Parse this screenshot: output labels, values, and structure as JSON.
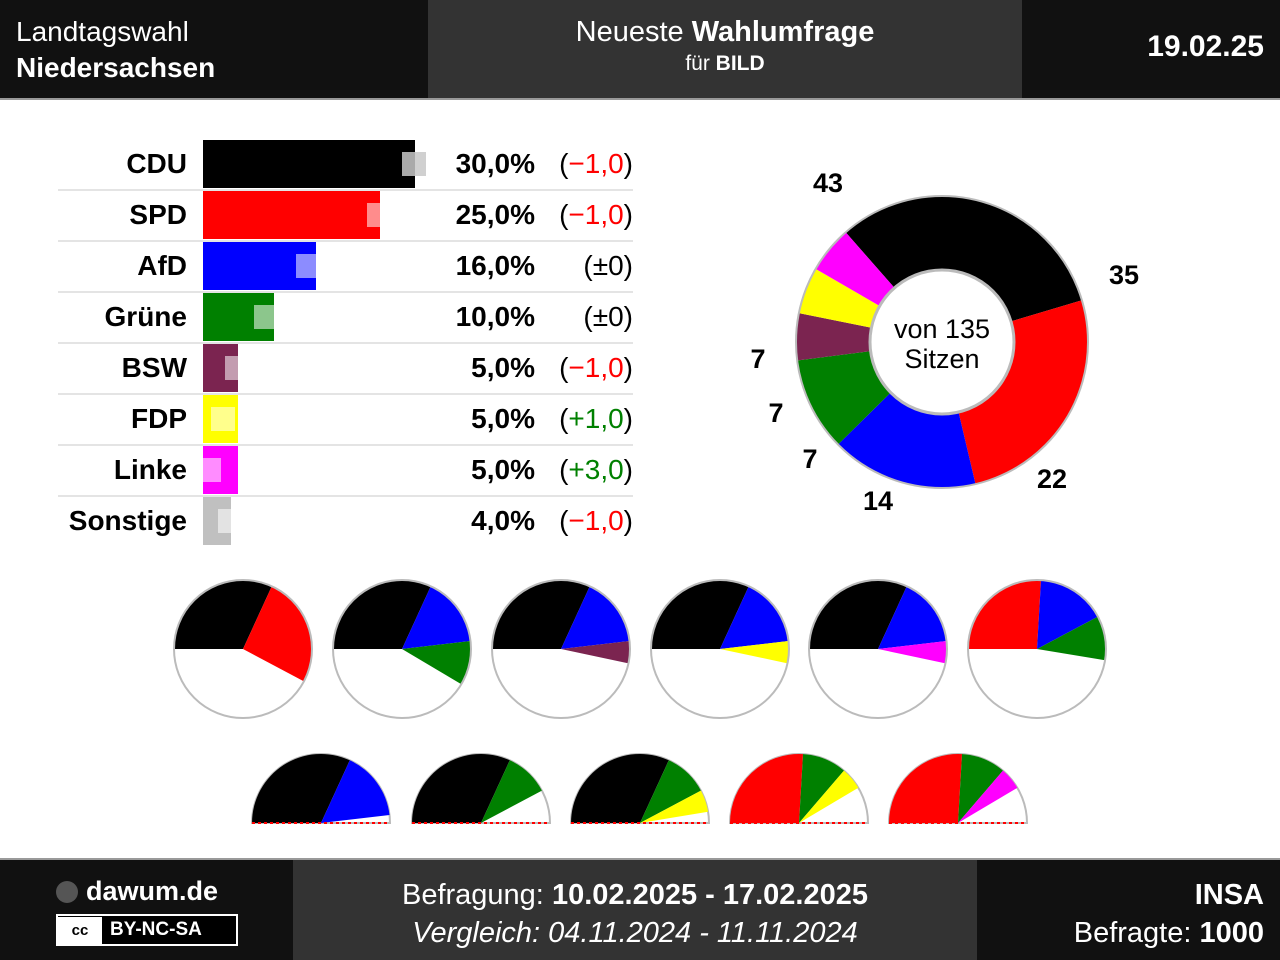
{
  "header": {
    "title_line1": "Landtagswahl",
    "title_line2": "Niedersachsen",
    "mid_prefix": "Neueste ",
    "mid_bold": "Wahlumfrage",
    "for_prefix": "für ",
    "for_client": "BILD",
    "date": "19.02.25"
  },
  "chart_data": [
    {
      "type": "bar",
      "categories": [
        "CDU",
        "SPD",
        "AfD",
        "Grüne",
        "BSW",
        "FDP",
        "Linke",
        "Sonstige"
      ],
      "values": [
        30.0,
        25.0,
        16.0,
        10.0,
        5.0,
        5.0,
        5.0,
        4.0
      ],
      "previous": [
        31.0,
        26.0,
        16.0,
        10.0,
        6.0,
        4.0,
        2.0,
        5.0
      ],
      "value_labels": [
        "30,0%",
        "25,0%",
        "16,0%",
        "10,0%",
        "5,0%",
        "5,0%",
        "5,0%",
        "4,0%"
      ],
      "change_labels": [
        "−1,0",
        "−1,0",
        "±0",
        "±0",
        "−1,0",
        "+1,0",
        "+3,0",
        "−1,0"
      ],
      "change_colors": [
        "#ff0000",
        "#ff0000",
        "#000000",
        "#000000",
        "#ff0000",
        "#008000",
        "#008000",
        "#ff0000"
      ],
      "colors": [
        "#000000",
        "#ff0000",
        "#0000ff",
        "#008000",
        "#7b2450",
        "#ffff00",
        "#ff00ff",
        "#c0c0c0"
      ]
    },
    {
      "type": "pie",
      "categories": [
        "CDU",
        "SPD",
        "AfD",
        "Grüne",
        "BSW",
        "FDP",
        "Linke"
      ],
      "values": [
        43,
        35,
        22,
        14,
        7,
        7,
        7
      ],
      "colors": [
        "#000000",
        "#ff0000",
        "#0000ff",
        "#008000",
        "#7b2450",
        "#ffff00",
        "#ff00ff"
      ],
      "center_line1": "von 135",
      "center_line2": "Sitzen"
    }
  ],
  "coalitions": [
    {
      "parties": [
        "CDU",
        "SPD"
      ],
      "seats": [
        43,
        35
      ],
      "colors": [
        "#000000",
        "#ff0000"
      ]
    },
    {
      "parties": [
        "CDU",
        "AfD",
        "Grüne"
      ],
      "seats": [
        43,
        22,
        14
      ],
      "colors": [
        "#000000",
        "#0000ff",
        "#008000"
      ]
    },
    {
      "parties": [
        "CDU",
        "AfD",
        "BSW"
      ],
      "seats": [
        43,
        22,
        7
      ],
      "colors": [
        "#000000",
        "#0000ff",
        "#7b2450"
      ]
    },
    {
      "parties": [
        "CDU",
        "AfD",
        "FDP"
      ],
      "seats": [
        43,
        22,
        7
      ],
      "colors": [
        "#000000",
        "#0000ff",
        "#ffff00"
      ]
    },
    {
      "parties": [
        "CDU",
        "AfD",
        "Linke"
      ],
      "seats": [
        43,
        22,
        7
      ],
      "colors": [
        "#000000",
        "#0000ff",
        "#ff00ff"
      ]
    },
    {
      "parties": [
        "SPD",
        "AfD",
        "Grüne"
      ],
      "seats": [
        35,
        22,
        14
      ],
      "colors": [
        "#ff0000",
        "#0000ff",
        "#008000"
      ]
    },
    {
      "parties": [
        "CDU",
        "AfD"
      ],
      "seats": [
        43,
        22
      ],
      "colors": [
        "#000000",
        "#0000ff"
      ]
    },
    {
      "parties": [
        "CDU",
        "Grüne"
      ],
      "seats": [
        43,
        14
      ],
      "colors": [
        "#000000",
        "#008000"
      ]
    },
    {
      "parties": [
        "CDU",
        "Grüne",
        "FDP"
      ],
      "seats": [
        43,
        14,
        7
      ],
      "colors": [
        "#000000",
        "#008000",
        "#ffff00"
      ]
    },
    {
      "parties": [
        "SPD",
        "Grüne",
        "FDP"
      ],
      "seats": [
        35,
        14,
        7
      ],
      "colors": [
        "#ff0000",
        "#008000",
        "#ffff00"
      ]
    },
    {
      "parties": [
        "SPD",
        "Grüne",
        "Linke"
      ],
      "seats": [
        35,
        14,
        7
      ],
      "colors": [
        "#ff0000",
        "#008000",
        "#ff00ff"
      ]
    }
  ],
  "total_seats": 135,
  "footer": {
    "site": "dawum.de",
    "license": "BY-NC-SA",
    "cc": "cc",
    "survey_label": "Befragung: ",
    "survey_dates": "10.02.2025 - 17.02.2025",
    "compare_text": "Vergleich: 04.11.2024 - 11.11.2024",
    "institute": "INSA",
    "respondents_label": "Befragte: ",
    "respondents": "1000"
  }
}
